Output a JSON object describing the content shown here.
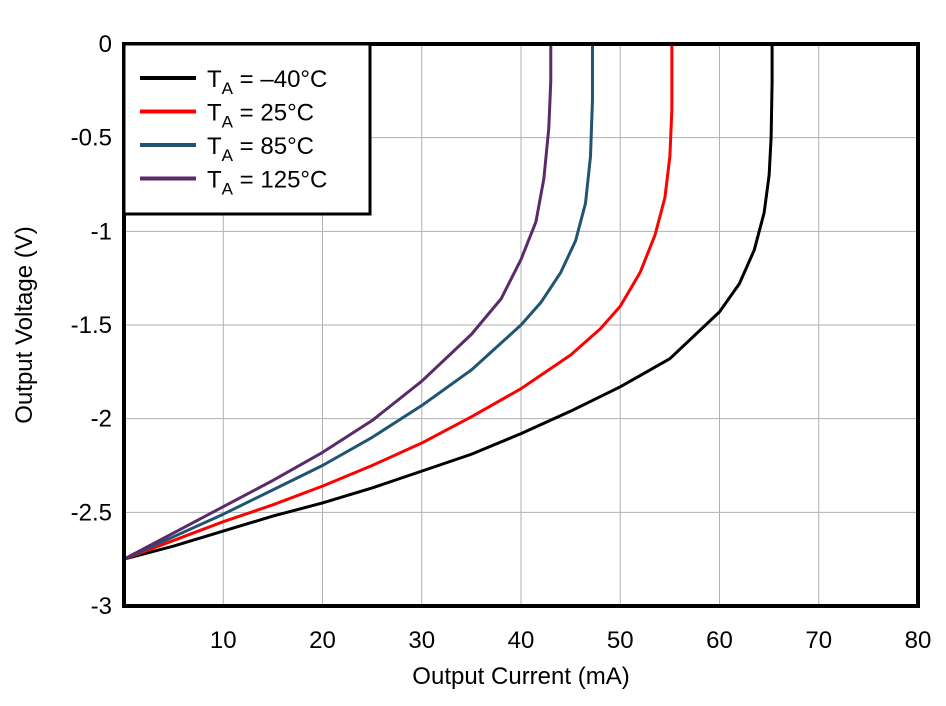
{
  "chart_data": {
    "type": "line",
    "title": "",
    "xlabel": "Output Current (mA)",
    "ylabel": "Output Voltage (V)",
    "xlim": [
      0,
      80
    ],
    "ylim": [
      -3,
      0
    ],
    "xticks": [
      10,
      20,
      30,
      40,
      50,
      60,
      70,
      80
    ],
    "yticks": [
      0,
      -0.5,
      -1,
      -1.5,
      -2,
      -2.5,
      -3
    ],
    "xtick_labels": [
      "10",
      "20",
      "30",
      "40",
      "50",
      "60",
      "70",
      "80"
    ],
    "ytick_labels": [
      "0",
      "-0.5",
      "-1",
      "-1.5",
      "-2",
      "-2.5",
      "-3"
    ],
    "grid": true,
    "legend_position": "top-left",
    "series": [
      {
        "name": "T_A = −40°C",
        "label_main": "T",
        "label_sub": "A",
        "label_rest": " = –40°C",
        "color": "#000000",
        "points": [
          [
            0,
            -2.75
          ],
          [
            5,
            -2.68
          ],
          [
            10,
            -2.6
          ],
          [
            15,
            -2.52
          ],
          [
            20,
            -2.45
          ],
          [
            25,
            -2.37
          ],
          [
            30,
            -2.28
          ],
          [
            35,
            -2.19
          ],
          [
            40,
            -2.08
          ],
          [
            45,
            -1.96
          ],
          [
            50,
            -1.83
          ],
          [
            55,
            -1.68
          ],
          [
            60,
            -1.43
          ],
          [
            62,
            -1.28
          ],
          [
            63.5,
            -1.1
          ],
          [
            64.5,
            -0.9
          ],
          [
            65,
            -0.7
          ],
          [
            65.2,
            -0.5
          ],
          [
            65.3,
            -0.2
          ],
          [
            65.3,
            0
          ]
        ]
      },
      {
        "name": "T_A = 25°C",
        "label_main": "T",
        "label_sub": "A",
        "label_rest": " = 25°C",
        "color": "#ff0000",
        "points": [
          [
            0,
            -2.75
          ],
          [
            5,
            -2.65
          ],
          [
            10,
            -2.55
          ],
          [
            15,
            -2.46
          ],
          [
            20,
            -2.36
          ],
          [
            25,
            -2.25
          ],
          [
            30,
            -2.13
          ],
          [
            35,
            -1.99
          ],
          [
            40,
            -1.84
          ],
          [
            45,
            -1.66
          ],
          [
            48,
            -1.52
          ],
          [
            50,
            -1.4
          ],
          [
            52,
            -1.22
          ],
          [
            53.5,
            -1.02
          ],
          [
            54.5,
            -0.82
          ],
          [
            55,
            -0.6
          ],
          [
            55.2,
            -0.35
          ],
          [
            55.2,
            0
          ]
        ]
      },
      {
        "name": "T_A = 85°C",
        "label_main": "T",
        "label_sub": "A",
        "label_rest": " = 85°C",
        "color": "#1f5472",
        "points": [
          [
            0,
            -2.75
          ],
          [
            5,
            -2.63
          ],
          [
            10,
            -2.51
          ],
          [
            15,
            -2.38
          ],
          [
            20,
            -2.25
          ],
          [
            25,
            -2.1
          ],
          [
            30,
            -1.93
          ],
          [
            35,
            -1.74
          ],
          [
            40,
            -1.5
          ],
          [
            42,
            -1.38
          ],
          [
            44,
            -1.22
          ],
          [
            45.5,
            -1.05
          ],
          [
            46.5,
            -0.85
          ],
          [
            47,
            -0.6
          ],
          [
            47.2,
            -0.3
          ],
          [
            47.2,
            0
          ]
        ]
      },
      {
        "name": "T_A = 125°C",
        "label_main": "T",
        "label_sub": "A",
        "label_rest": " = 125°C",
        "color": "#5a2a6a",
        "points": [
          [
            0,
            -2.75
          ],
          [
            5,
            -2.61
          ],
          [
            10,
            -2.47
          ],
          [
            15,
            -2.33
          ],
          [
            20,
            -2.18
          ],
          [
            25,
            -2.01
          ],
          [
            30,
            -1.8
          ],
          [
            35,
            -1.55
          ],
          [
            38,
            -1.36
          ],
          [
            40,
            -1.15
          ],
          [
            41.5,
            -0.95
          ],
          [
            42.3,
            -0.72
          ],
          [
            42.8,
            -0.45
          ],
          [
            43,
            -0.2
          ],
          [
            43,
            0
          ]
        ]
      }
    ]
  }
}
